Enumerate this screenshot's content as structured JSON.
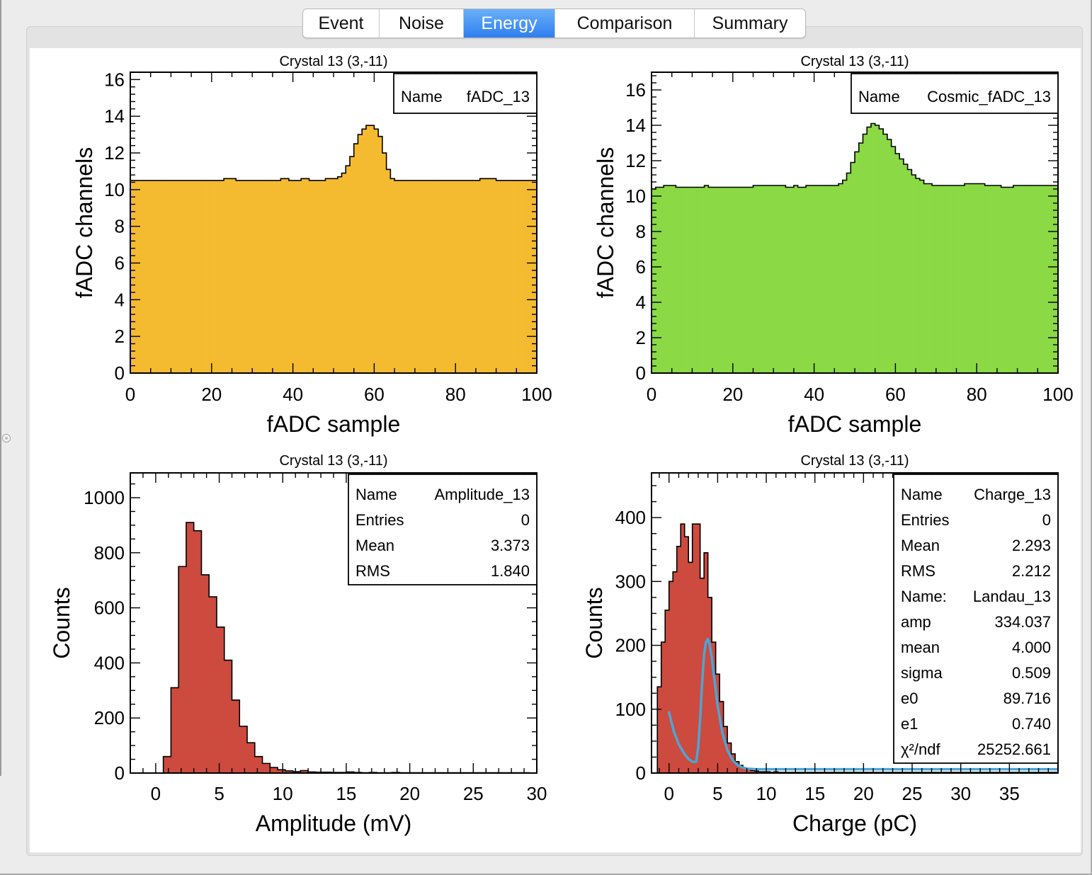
{
  "tabs": [
    {
      "label": "Event"
    },
    {
      "label": "Noise"
    },
    {
      "label": "Energy"
    },
    {
      "label": "Comparison"
    },
    {
      "label": "Summary"
    }
  ],
  "active_tab": "Energy",
  "colors": {
    "accent_tab": "#3b86f2",
    "fill_orange": "#f5bb30",
    "fill_green": "#8ad945",
    "fill_red": "#cc4a3e",
    "fit_line": "#4aa6d6"
  },
  "chart_data": [
    {
      "type": "bar",
      "title": "Crystal 13 (3,-11)",
      "xlabel": "fADC sample",
      "ylabel": "fADC channels",
      "xlim": [
        0,
        100
      ],
      "ylim": [
        0,
        16.4
      ],
      "xticks": [
        0,
        20,
        40,
        60,
        80,
        100
      ],
      "yticks": [
        0,
        2,
        4,
        6,
        8,
        10,
        12,
        14,
        16
      ],
      "fill": "#f5bb30",
      "bin_width": 1,
      "stats": [
        {
          "label": "Name",
          "value": "fADC_13"
        }
      ],
      "series": [
        {
          "x": [
            0,
            1,
            2,
            3,
            4,
            5,
            6,
            7,
            8,
            9,
            10,
            11,
            12,
            13,
            14,
            15,
            16,
            17,
            18,
            19,
            20,
            21,
            22,
            23,
            24,
            25,
            26,
            27,
            28,
            29,
            30,
            31,
            32,
            33,
            34,
            35,
            36,
            37,
            38,
            39,
            40,
            41,
            42,
            43,
            44,
            45,
            46,
            47,
            48,
            49,
            50,
            51,
            52,
            53,
            54,
            55,
            56,
            57,
            58,
            59,
            60,
            61,
            62,
            63,
            64,
            65,
            66,
            67,
            68,
            69,
            70,
            71,
            72,
            73,
            74,
            75,
            76,
            77,
            78,
            79,
            80,
            81,
            82,
            83,
            84,
            85,
            86,
            87,
            88,
            89,
            90,
            91,
            92,
            93,
            94,
            95,
            96,
            97,
            98,
            99
          ],
          "values": [
            10.5,
            10.5,
            10.5,
            10.5,
            10.5,
            10.5,
            10.5,
            10.5,
            10.5,
            10.5,
            10.5,
            10.5,
            10.5,
            10.5,
            10.5,
            10.5,
            10.5,
            10.5,
            10.5,
            10.5,
            10.5,
            10.5,
            10.5,
            10.6,
            10.6,
            10.6,
            10.5,
            10.5,
            10.5,
            10.5,
            10.5,
            10.5,
            10.5,
            10.5,
            10.5,
            10.5,
            10.5,
            10.6,
            10.6,
            10.5,
            10.5,
            10.5,
            10.6,
            10.6,
            10.5,
            10.5,
            10.5,
            10.5,
            10.6,
            10.6,
            10.6,
            10.7,
            10.9,
            11.3,
            11.8,
            12.5,
            13.0,
            13.3,
            13.5,
            13.5,
            13.3,
            12.9,
            12.0,
            11.1,
            10.6,
            10.5,
            10.5,
            10.5,
            10.5,
            10.5,
            10.5,
            10.5,
            10.5,
            10.5,
            10.5,
            10.5,
            10.5,
            10.5,
            10.5,
            10.5,
            10.5,
            10.5,
            10.5,
            10.5,
            10.5,
            10.5,
            10.6,
            10.6,
            10.6,
            10.6,
            10.5,
            10.5,
            10.5,
            10.5,
            10.5,
            10.5,
            10.5,
            10.5,
            10.5,
            10.5
          ]
        }
      ]
    },
    {
      "type": "bar",
      "title": "Crystal 13 (3,-11)",
      "xlabel": "fADC sample",
      "ylabel": "fADC channels",
      "xlim": [
        0,
        100
      ],
      "ylim": [
        0,
        17
      ],
      "xticks": [
        0,
        20,
        40,
        60,
        80,
        100
      ],
      "yticks": [
        0,
        2,
        4,
        6,
        8,
        10,
        12,
        14,
        16
      ],
      "fill": "#8ad945",
      "bin_width": 1,
      "stats": [
        {
          "label": "Name",
          "value": "Cosmic_fADC_13"
        }
      ],
      "series": [
        {
          "x": [
            0,
            1,
            2,
            3,
            4,
            5,
            6,
            7,
            8,
            9,
            10,
            11,
            12,
            13,
            14,
            15,
            16,
            17,
            18,
            19,
            20,
            21,
            22,
            23,
            24,
            25,
            26,
            27,
            28,
            29,
            30,
            31,
            32,
            33,
            34,
            35,
            36,
            37,
            38,
            39,
            40,
            41,
            42,
            43,
            44,
            45,
            46,
            47,
            48,
            49,
            50,
            51,
            52,
            53,
            54,
            55,
            56,
            57,
            58,
            59,
            60,
            61,
            62,
            63,
            64,
            65,
            66,
            67,
            68,
            69,
            70,
            71,
            72,
            73,
            74,
            75,
            76,
            77,
            78,
            79,
            80,
            81,
            82,
            83,
            84,
            85,
            86,
            87,
            88,
            89,
            90,
            91,
            92,
            93,
            94,
            95,
            96,
            97,
            98,
            99
          ],
          "values": [
            10.4,
            10.5,
            10.5,
            10.6,
            10.6,
            10.6,
            10.5,
            10.5,
            10.5,
            10.5,
            10.5,
            10.5,
            10.5,
            10.6,
            10.5,
            10.5,
            10.5,
            10.5,
            10.5,
            10.5,
            10.5,
            10.5,
            10.5,
            10.5,
            10.5,
            10.6,
            10.6,
            10.6,
            10.6,
            10.6,
            10.6,
            10.6,
            10.6,
            10.5,
            10.5,
            10.6,
            10.5,
            10.5,
            10.6,
            10.6,
            10.6,
            10.6,
            10.6,
            10.6,
            10.6,
            10.6,
            10.7,
            10.9,
            11.3,
            11.9,
            12.5,
            13.0,
            13.5,
            13.9,
            14.1,
            14.0,
            13.8,
            13.5,
            13.2,
            12.8,
            12.4,
            12.1,
            11.8,
            11.5,
            11.2,
            11.0,
            10.9,
            10.7,
            10.7,
            10.6,
            10.6,
            10.6,
            10.6,
            10.6,
            10.6,
            10.6,
            10.6,
            10.7,
            10.7,
            10.7,
            10.7,
            10.7,
            10.6,
            10.6,
            10.6,
            10.6,
            10.5,
            10.5,
            10.5,
            10.6,
            10.6,
            10.6,
            10.6,
            10.6,
            10.6,
            10.6,
            10.6,
            10.6,
            10.6,
            10.6
          ]
        }
      ]
    },
    {
      "type": "bar",
      "title": "Crystal 13 (3,-11)",
      "xlabel": "Amplitude (mV)",
      "ylabel": "Counts",
      "xlim": [
        -2,
        30
      ],
      "ylim": [
        0,
        1090
      ],
      "xticks": [
        0,
        5,
        10,
        15,
        20,
        25,
        30
      ],
      "yticks": [
        0,
        200,
        400,
        600,
        800,
        1000
      ],
      "fill": "#cc4a3e",
      "bin_width": 0.6,
      "stats": [
        {
          "label": "Name",
          "value": "Amplitude_13"
        },
        {
          "label": "Entries",
          "value": "0"
        },
        {
          "label": "Mean",
          "value": "3.373"
        },
        {
          "label": "RMS",
          "value": "1.840"
        }
      ],
      "series": [
        {
          "x": [
            0.6,
            1.2,
            1.8,
            2.4,
            3.0,
            3.6,
            4.2,
            4.8,
            5.4,
            6.0,
            6.6,
            7.2,
            7.8,
            8.4,
            9.0,
            9.6,
            10.2,
            10.8,
            11.4,
            12.0,
            12.6,
            13.2,
            13.8,
            14.4,
            15.0,
            15.6,
            16.2,
            16.8,
            17.4,
            18.0,
            18.6,
            19.2,
            19.8,
            20.4,
            21.0,
            21.6,
            22.2,
            22.8,
            23.4,
            24.0,
            24.6,
            25.2,
            25.8,
            26.4,
            27.0,
            27.6,
            28.2,
            28.8
          ],
          "values": [
            60,
            310,
            750,
            910,
            880,
            720,
            640,
            530,
            410,
            265,
            170,
            110,
            60,
            35,
            20,
            12,
            8,
            5,
            9,
            4,
            3,
            3,
            2,
            2,
            4,
            2,
            1,
            2,
            1,
            1,
            2,
            1,
            1,
            1,
            1,
            1,
            1,
            1,
            1,
            1,
            1,
            1,
            1,
            1,
            1,
            1,
            1,
            1
          ]
        }
      ]
    },
    {
      "type": "bar",
      "title": "Crystal 13 (3,-11)",
      "xlabel": "Charge (pC)",
      "ylabel": "Counts",
      "xlim": [
        -1.8,
        40
      ],
      "ylim": [
        0,
        470
      ],
      "xticks": [
        0,
        5,
        10,
        15,
        20,
        25,
        30,
        35
      ],
      "yticks": [
        0,
        100,
        200,
        300,
        400
      ],
      "fill": "#cc4a3e",
      "bin_width": 0.4,
      "stats": [
        {
          "label": "Name",
          "value": "Charge_13"
        },
        {
          "label": "Entries",
          "value": "0"
        },
        {
          "label": "Mean",
          "value": "2.293"
        },
        {
          "label": "RMS",
          "value": "2.212"
        },
        {
          "label": "Name:",
          "value": "Landau_13"
        },
        {
          "label": "amp",
          "value": "334.037"
        },
        {
          "label": "mean",
          "value": "4.000"
        },
        {
          "label": "sigma",
          "value": "0.509"
        },
        {
          "label": "e0",
          "value": "89.716"
        },
        {
          "label": "e1",
          "value": "0.740"
        },
        {
          "label": "χ²/ndf",
          "value": "25252.661"
        }
      ],
      "series": [
        {
          "x": [
            -1.2,
            -0.8,
            -0.4,
            0.0,
            0.4,
            0.8,
            1.2,
            1.6,
            2.0,
            2.4,
            2.8,
            3.2,
            3.6,
            4.0,
            4.4,
            4.8,
            5.2,
            5.6,
            6.0,
            6.4,
            6.8,
            7.2,
            7.6,
            8.0,
            8.4,
            8.8,
            9.2,
            9.6,
            10.0,
            10.4,
            10.8,
            11.2,
            11.6,
            12.0,
            12.4,
            12.8,
            13.2,
            13.6,
            14.0,
            14.4,
            14.8,
            15.2,
            15.6,
            16.0,
            16.4,
            16.8,
            17.2,
            17.6,
            18.0,
            18.4,
            18.8,
            19.2,
            19.6,
            20.0,
            20.4,
            20.8,
            21.2,
            21.6,
            22.0,
            22.4,
            22.8,
            23.2,
            23.6,
            24.0,
            24.4,
            24.8,
            25.2,
            25.6,
            26.0,
            26.4,
            26.8,
            27.2,
            27.6,
            28.0,
            28.4,
            28.8,
            29.2,
            29.6,
            30.0,
            30.4,
            30.8,
            31.2,
            31.6,
            32.0,
            32.4,
            32.8,
            33.2,
            33.6,
            34.0,
            34.4,
            34.8,
            35.2,
            35.6,
            36.0,
            36.4,
            36.8,
            37.2,
            37.6,
            38.0,
            38.4,
            38.8,
            39.2,
            39.6
          ],
          "values": [
            135,
            205,
            255,
            300,
            315,
            355,
            390,
            370,
            330,
            390,
            390,
            305,
            345,
            275,
            205,
            155,
            112,
            73,
            47,
            30,
            18,
            12,
            8,
            6,
            4,
            3,
            2,
            2,
            2,
            1,
            2,
            1,
            1,
            1,
            1,
            1,
            1,
            1,
            1,
            1,
            1,
            1,
            1,
            1,
            1,
            1,
            1,
            1,
            1,
            1,
            1,
            1,
            1,
            1,
            1,
            1,
            1,
            1,
            1,
            1,
            1,
            1,
            1,
            1,
            1,
            1,
            1,
            1,
            1,
            1,
            1,
            1,
            1,
            1,
            1,
            1,
            1,
            1,
            1,
            1,
            1,
            1,
            1,
            1,
            1,
            1,
            1,
            1,
            1,
            1,
            1,
            1,
            1,
            1,
            1,
            1,
            1,
            1,
            1,
            1,
            1,
            1,
            1
          ]
        }
      ],
      "fit": {
        "name": "Landau_13",
        "color": "#4aa6d6",
        "x": [
          0.0,
          0.5,
          1.0,
          1.5,
          2.0,
          2.5,
          2.8,
          3.0,
          3.2,
          3.4,
          3.6,
          3.8,
          4.0,
          4.2,
          4.4,
          4.6,
          4.8,
          5.0,
          5.5,
          6.0,
          6.5,
          7.0,
          7.5,
          8.0,
          9.0,
          10,
          12,
          15,
          20,
          25,
          30,
          35,
          40
        ],
        "y": [
          95,
          65,
          45,
          32,
          22,
          17,
          18,
          40,
          85,
          140,
          185,
          205,
          210,
          200,
          180,
          155,
          130,
          105,
          62,
          36,
          21,
          13,
          9,
          7,
          6,
          6,
          6,
          6,
          6,
          6,
          6,
          6,
          6
        ]
      }
    }
  ]
}
